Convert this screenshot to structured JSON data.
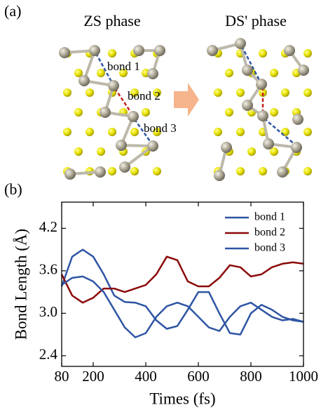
{
  "panel_labels": [
    "(a)",
    "(b)"
  ],
  "structure": {
    "left_title": "ZS phase",
    "right_title": "DS' phase",
    "bond_labels": [
      "bond 1",
      "bond 2",
      "bond 3"
    ]
  },
  "chart_data": {
    "type": "line",
    "x_label": "Times (fs)",
    "y_label": "Bond Length (Å)",
    "x": [
      80,
      120,
      160,
      200,
      240,
      280,
      320,
      360,
      400,
      440,
      480,
      520,
      560,
      600,
      640,
      680,
      720,
      760,
      800,
      840,
      880,
      920,
      960,
      1000
    ],
    "series": [
      {
        "name": "bond 1",
        "color": "#2f55a4",
        "values": [
          3.38,
          3.8,
          3.9,
          3.8,
          3.55,
          3.25,
          3.16,
          3.15,
          3.1,
          2.9,
          2.78,
          2.82,
          3.05,
          3.3,
          3.3,
          3.0,
          2.72,
          2.7,
          3.0,
          3.12,
          3.05,
          2.95,
          2.9,
          2.88
        ]
      },
      {
        "name": "bond 2",
        "color": "#8b0a0a",
        "values": [
          3.55,
          3.25,
          3.15,
          3.22,
          3.35,
          3.35,
          3.3,
          3.35,
          3.4,
          3.55,
          3.8,
          3.75,
          3.45,
          3.38,
          3.38,
          3.5,
          3.68,
          3.65,
          3.52,
          3.55,
          3.65,
          3.7,
          3.72,
          3.7
        ]
      },
      {
        "name": "bond 3",
        "color": "#2f55a4",
        "values": [
          3.4,
          3.5,
          3.52,
          3.45,
          3.3,
          3.05,
          2.8,
          2.66,
          2.72,
          2.95,
          3.1,
          3.15,
          3.1,
          2.95,
          2.8,
          2.75,
          2.95,
          3.1,
          3.15,
          3.05,
          2.95,
          2.9,
          2.92,
          2.88
        ]
      }
    ],
    "xlim": [
      80,
      1000
    ],
    "ylim": [
      2.25,
      4.57
    ],
    "xticks": [
      80,
      200,
      400,
      600,
      800,
      1000
    ],
    "yticks": [
      2.4,
      {
        "value": 3,
        "label": "3.0"
      },
      3.6,
      4.2
    ],
    "legend": "upper right"
  }
}
